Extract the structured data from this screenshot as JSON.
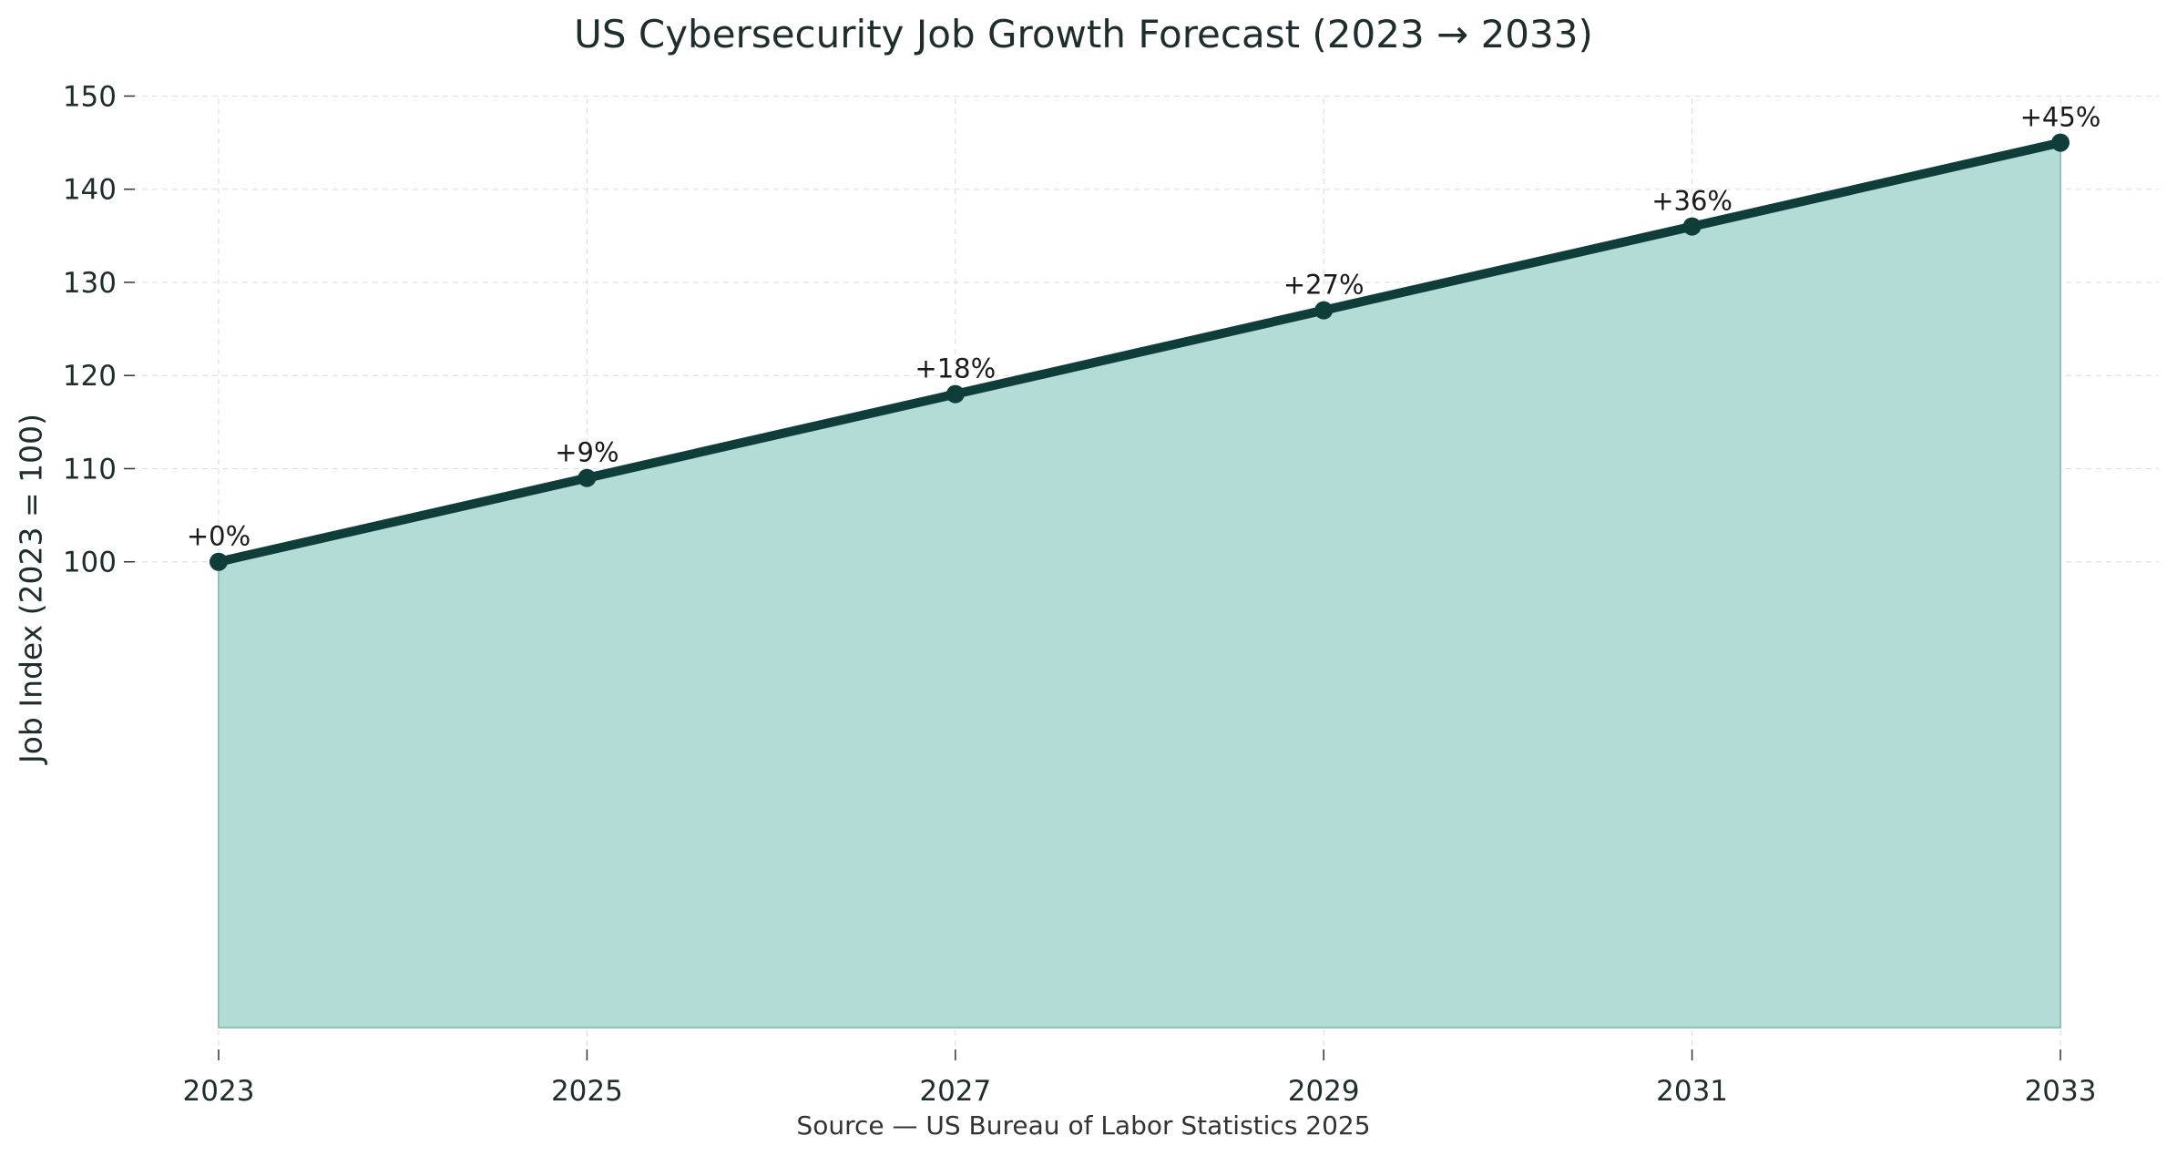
{
  "chart_data": {
    "type": "area",
    "title": "US Cybersecurity Job Growth Forecast (2023 → 2033)",
    "xlabel": "",
    "ylabel": "Job Index (2023 = 100)",
    "source": "Source — US Bureau of Labor Statistics 2025",
    "x": [
      2023,
      2025,
      2027,
      2029,
      2031,
      2033
    ],
    "y": [
      100,
      109,
      118,
      127,
      136,
      145
    ],
    "data_labels": [
      "+0%",
      "+9%",
      "+18%",
      "+27%",
      "+36%",
      "+45%"
    ],
    "x_ticks": [
      "2023",
      "2025",
      "2027",
      "2029",
      "2031",
      "2033"
    ],
    "y_ticks": [
      "100",
      "110",
      "120",
      "130",
      "140",
      "150"
    ],
    "y_tick_values": [
      100,
      110,
      120,
      130,
      140,
      150
    ],
    "xlim": [
      2023,
      2033
    ],
    "ylim": [
      50,
      152
    ],
    "fill_base": 50,
    "grid": true,
    "legend": "none",
    "colors": {
      "line": "#0f3d3a",
      "fill": "#b3dcd6",
      "fill_edge": "#8fc4bb",
      "grid": "#d9d9d9",
      "text": "#1f2d2d"
    }
  }
}
